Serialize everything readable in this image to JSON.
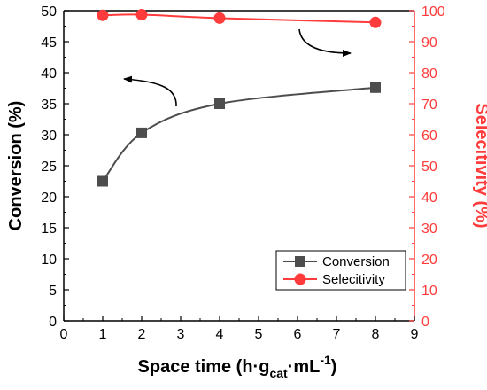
{
  "chart_data": {
    "type": "line",
    "x": [
      1,
      2,
      4,
      8
    ],
    "xlim": [
      0,
      9
    ],
    "xticks": [
      0,
      1,
      2,
      3,
      4,
      5,
      6,
      7,
      8,
      9
    ],
    "xlabel_parts": {
      "pre": "Space time (h·g",
      "sub": "cat",
      "mid": "·mL",
      "sup": "-1",
      "post": ")"
    },
    "ylabel_left": "Conversion (%)",
    "ylim_left": [
      0,
      50
    ],
    "yticks_left": [
      0,
      5,
      10,
      15,
      20,
      25,
      30,
      35,
      40,
      45,
      50
    ],
    "ylabel_right": "Selecitivity (%)",
    "ylim_right": [
      0,
      100
    ],
    "yticks_right": [
      0,
      10,
      20,
      30,
      40,
      50,
      60,
      70,
      80,
      90,
      100
    ],
    "series": [
      {
        "name": "Conversion",
        "axis": "left",
        "marker": "square",
        "color": "#4d4d4d",
        "values": [
          22.5,
          30.3,
          35.0,
          37.6
        ]
      },
      {
        "name": "Selecitivity",
        "axis": "right",
        "marker": "circle",
        "color": "#ff3b3b",
        "values": [
          98.5,
          98.7,
          97.6,
          96.2
        ]
      }
    ],
    "legend_position": "bottom-right",
    "grid": false
  }
}
